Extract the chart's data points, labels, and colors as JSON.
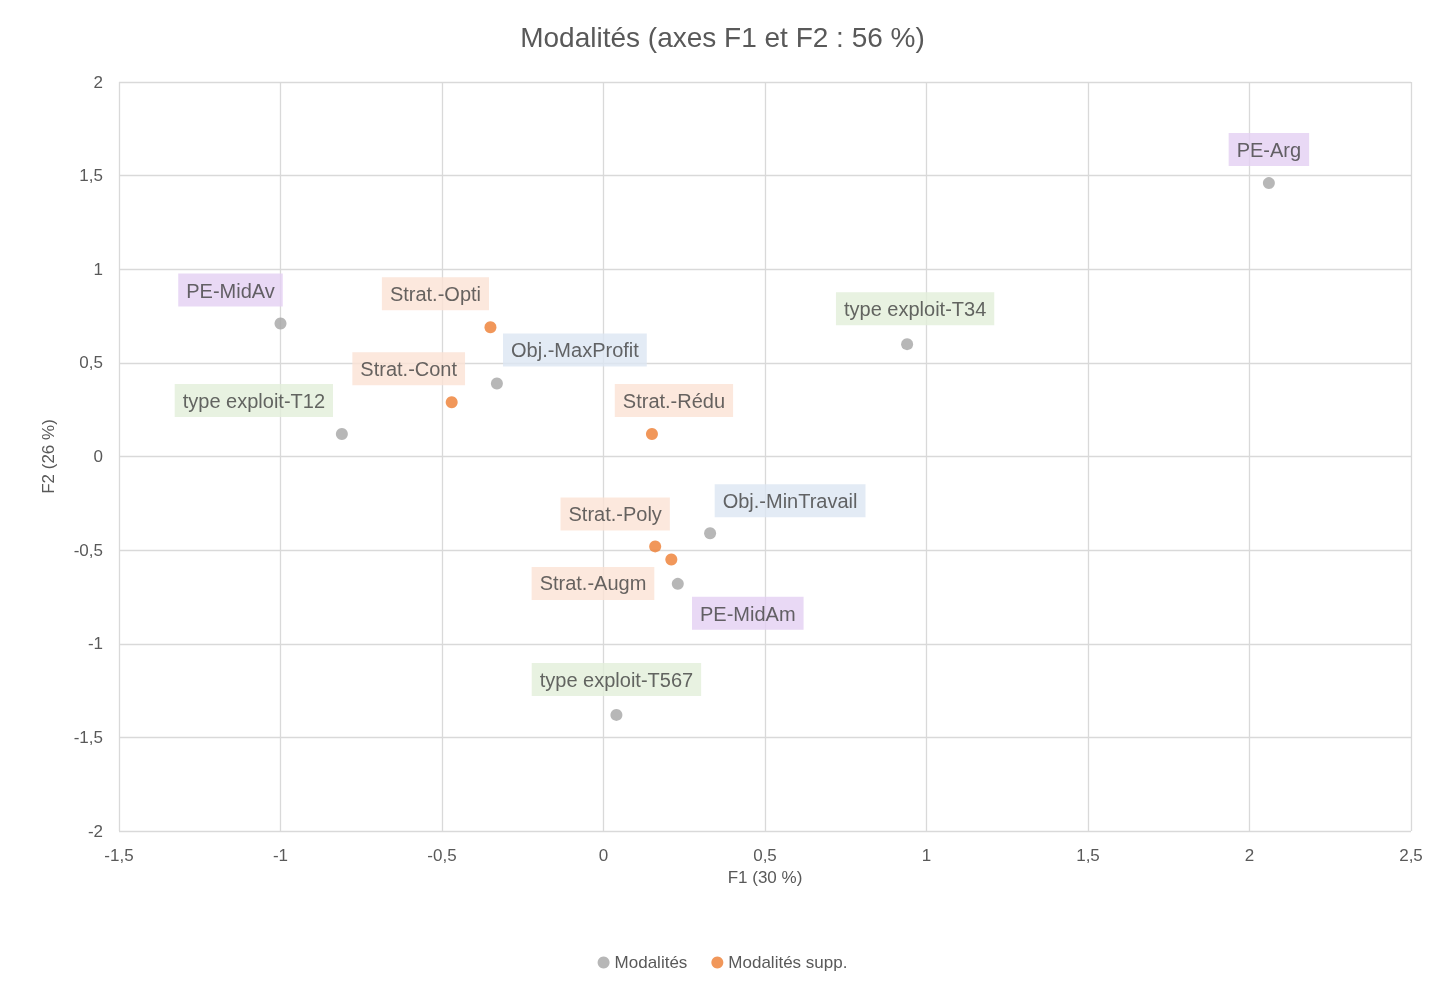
{
  "chart_data": {
    "type": "scatter",
    "title": "Modalités (axes F1 et F2 : 56 %)",
    "xlabel": "F1 (30 %)",
    "ylabel": "F2 (26 %)",
    "series": [
      {
        "name": "Modalités",
        "color": "#a5a5a5",
        "x": [
          2.06,
          0.94,
          -1.0,
          -0.33,
          -0.81,
          0.33,
          0.23,
          0.04
        ],
        "values": [
          1.46,
          0.6,
          0.71,
          0.39,
          0.12,
          -0.41,
          -0.68,
          -1.38
        ],
        "value_labels": [
          "PE-Arg",
          "type exploit-T34",
          "PE-MidAv",
          "Obj.-MaxProfit",
          "type exploit-T12",
          "Obj.-MinTravail",
          "PE-MidAm",
          "type exploit-T567"
        ]
      },
      {
        "name": "Modalités supp.",
        "color": "#ed7d31",
        "x": [
          -0.35,
          -0.47,
          0.15,
          0.16,
          0.21
        ],
        "values": [
          0.69,
          0.29,
          0.12,
          -0.48,
          -0.55
        ],
        "value_labels": [
          "Strat.-Opti",
          "Strat.-Cont",
          "Strat.-Rédu",
          "Strat.-Poly",
          "Strat.-Augm"
        ]
      }
    ],
    "xlim": [
      -1.5,
      2.5
    ],
    "xticks": [
      {
        "value": -1.5,
        "label": "-1,5"
      },
      -1,
      {
        "value": -0.5,
        "label": "-0,5"
      },
      0,
      {
        "value": 0.5,
        "label": "0,5"
      },
      1,
      {
        "value": 1.5,
        "label": "1,5"
      },
      2,
      {
        "value": 2.5,
        "label": "2,5"
      }
    ],
    "ylim": [
      -2,
      2
    ],
    "yticks": [
      -2,
      {
        "value": -1.5,
        "label": "-1,5"
      },
      -1,
      {
        "value": -0.5,
        "label": "-0,5"
      },
      0,
      {
        "value": 0.5,
        "label": "0,5"
      },
      1,
      {
        "value": 1.5,
        "label": "1,5"
      },
      2
    ],
    "grid": true,
    "legend": "bottom",
    "marker": "circle"
  }
}
